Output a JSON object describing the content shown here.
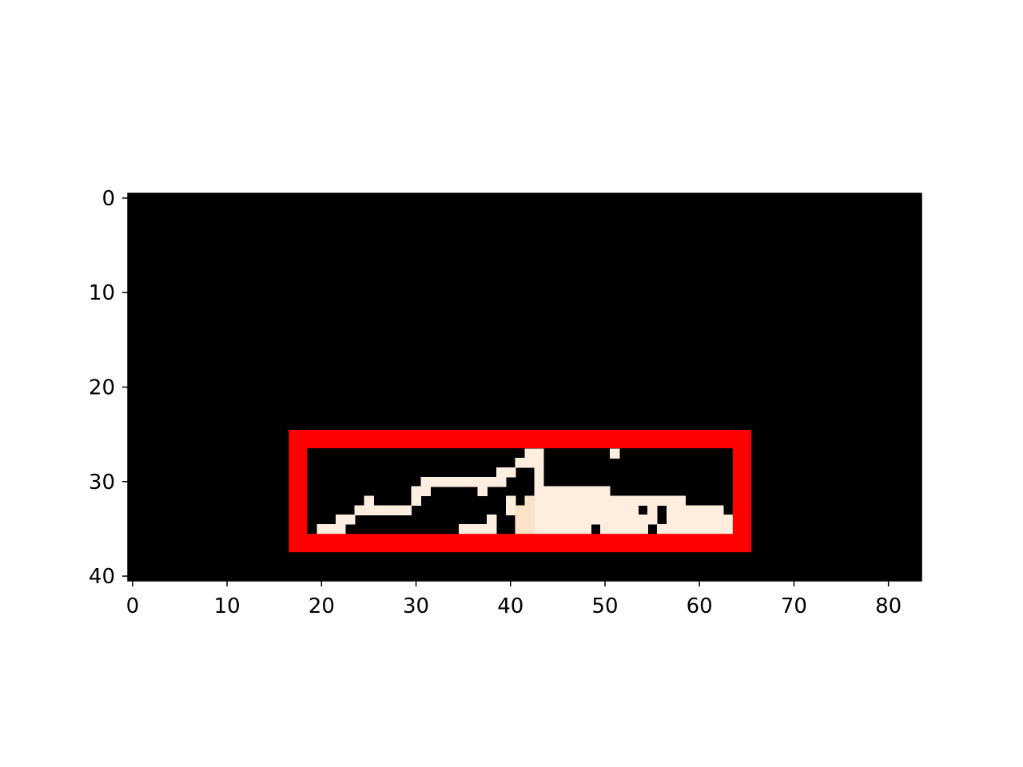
{
  "chart_data": {
    "type": "heatmap",
    "title": "",
    "xlabel": "",
    "ylabel": "",
    "grid": false,
    "image_size": {
      "columns": 84,
      "rows": 41
    },
    "xlim": [
      -0.5,
      83.5
    ],
    "ylim": [
      40.5,
      -0.5
    ],
    "xticks": [
      0,
      10,
      20,
      30,
      40,
      50,
      60,
      70,
      80
    ],
    "xtick_labels": [
      "0",
      "10",
      "20",
      "30",
      "40",
      "50",
      "60",
      "70",
      "80"
    ],
    "yticks": [
      0,
      10,
      20,
      30,
      40
    ],
    "ytick_labels": [
      "0",
      "10",
      "20",
      "30",
      "40"
    ],
    "background_color": "#000000",
    "pixel_colors": {
      "light": "#fdeee0",
      "peach": "#fbe2c8"
    },
    "lit_pixels_light": [
      [
        27,
        42
      ],
      [
        27,
        43
      ],
      [
        27,
        51
      ],
      [
        28,
        41
      ],
      [
        28,
        42
      ],
      [
        28,
        43
      ],
      [
        29,
        39
      ],
      [
        29,
        40
      ],
      [
        29,
        43
      ],
      [
        30,
        31
      ],
      [
        30,
        32
      ],
      [
        30,
        33
      ],
      [
        30,
        34
      ],
      [
        30,
        35
      ],
      [
        30,
        36
      ],
      [
        30,
        37
      ],
      [
        30,
        38
      ],
      [
        30,
        39
      ],
      [
        30,
        43
      ],
      [
        31,
        30
      ],
      [
        31,
        31
      ],
      [
        31,
        37
      ],
      [
        31,
        43
      ],
      [
        31,
        44
      ],
      [
        31,
        45
      ],
      [
        31,
        46
      ],
      [
        31,
        47
      ],
      [
        31,
        48
      ],
      [
        31,
        49
      ],
      [
        31,
        50
      ],
      [
        32,
        25
      ],
      [
        32,
        30
      ],
      [
        32,
        40
      ],
      [
        32,
        43
      ],
      [
        32,
        44
      ],
      [
        32,
        45
      ],
      [
        32,
        46
      ],
      [
        32,
        47
      ],
      [
        32,
        48
      ],
      [
        32,
        49
      ],
      [
        32,
        50
      ],
      [
        32,
        51
      ],
      [
        32,
        52
      ],
      [
        32,
        53
      ],
      [
        32,
        54
      ],
      [
        32,
        55
      ],
      [
        32,
        56
      ],
      [
        32,
        57
      ],
      [
        32,
        58
      ],
      [
        33,
        24
      ],
      [
        33,
        25
      ],
      [
        33,
        26
      ],
      [
        33,
        27
      ],
      [
        33,
        28
      ],
      [
        33,
        29
      ],
      [
        33,
        40
      ],
      [
        33,
        43
      ],
      [
        33,
        44
      ],
      [
        33,
        45
      ],
      [
        33,
        46
      ],
      [
        33,
        47
      ],
      [
        33,
        48
      ],
      [
        33,
        49
      ],
      [
        33,
        50
      ],
      [
        33,
        51
      ],
      [
        33,
        52
      ],
      [
        33,
        53
      ],
      [
        33,
        55
      ],
      [
        33,
        57
      ],
      [
        33,
        58
      ],
      [
        33,
        59
      ],
      [
        33,
        60
      ],
      [
        33,
        61
      ],
      [
        33,
        62
      ],
      [
        34,
        22
      ],
      [
        34,
        23
      ],
      [
        34,
        38
      ],
      [
        34,
        43
      ],
      [
        34,
        44
      ],
      [
        34,
        45
      ],
      [
        34,
        46
      ],
      [
        34,
        47
      ],
      [
        34,
        48
      ],
      [
        34,
        49
      ],
      [
        34,
        50
      ],
      [
        34,
        51
      ],
      [
        34,
        52
      ],
      [
        34,
        53
      ],
      [
        34,
        54
      ],
      [
        34,
        55
      ],
      [
        34,
        57
      ],
      [
        34,
        58
      ],
      [
        34,
        59
      ],
      [
        34,
        60
      ],
      [
        34,
        61
      ],
      [
        34,
        62
      ],
      [
        34,
        63
      ],
      [
        35,
        20
      ],
      [
        35,
        21
      ],
      [
        35,
        22
      ],
      [
        35,
        35
      ],
      [
        35,
        36
      ],
      [
        35,
        37
      ],
      [
        35,
        38
      ],
      [
        35,
        43
      ],
      [
        35,
        44
      ],
      [
        35,
        45
      ],
      [
        35,
        46
      ],
      [
        35,
        47
      ],
      [
        35,
        48
      ],
      [
        35,
        50
      ],
      [
        35,
        51
      ],
      [
        35,
        52
      ],
      [
        35,
        53
      ],
      [
        35,
        54
      ],
      [
        35,
        56
      ],
      [
        35,
        57
      ],
      [
        35,
        58
      ],
      [
        35,
        59
      ],
      [
        35,
        60
      ],
      [
        35,
        61
      ],
      [
        35,
        62
      ],
      [
        35,
        63
      ]
    ],
    "lit_pixels_peach": [
      [
        32,
        42
      ],
      [
        33,
        41
      ],
      [
        33,
        42
      ],
      [
        34,
        41
      ],
      [
        34,
        42
      ],
      [
        35,
        41
      ],
      [
        35,
        42
      ]
    ],
    "annotations": [
      {
        "type": "rectangle",
        "x0": 17.5,
        "x1": 64.5,
        "y0": 25.5,
        "y1": 36.5,
        "color": "#ff0000",
        "fill": "none"
      }
    ]
  }
}
